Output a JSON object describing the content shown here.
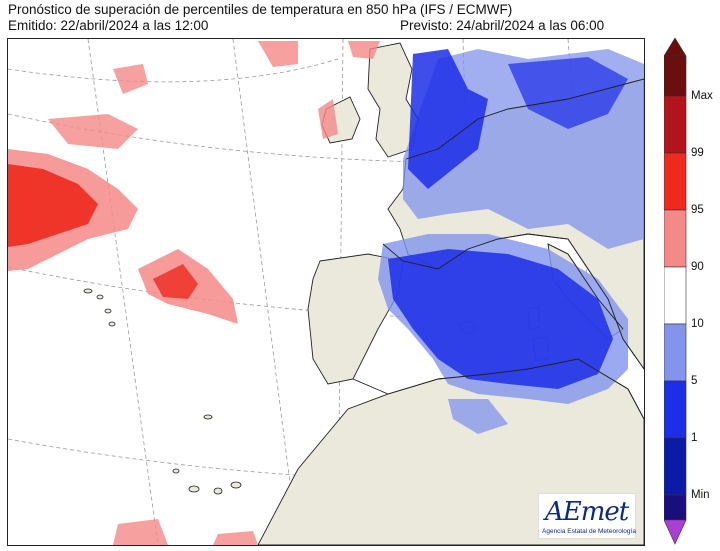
{
  "header": {
    "title": "Pronóstico de superación de percentiles de temperatura en 850 hPa (IFS / ECMWF)",
    "issued": "Emitido: 22/abril/2024 a las 12:00",
    "valid": "Previsto: 24/abril/2024 a las 06:00"
  },
  "logo": {
    "name": "AEmet",
    "subtitle": "Agencia Estatal de Meteorología"
  },
  "colorbar": {
    "labels": [
      "Max",
      "99",
      "95",
      "90",
      "10",
      "5",
      "1",
      "Min"
    ],
    "colors": {
      "max": "#6a0e0e",
      "p99": "#b3141b",
      "p95": "#ee2a1e",
      "p90": "#f48a88",
      "neutral": "#ffffff",
      "p10": "#8294ec",
      "p5": "#1d2ee8",
      "p1": "#0a1ba6",
      "min_low": "#1a0f7a",
      "min": "#a93fd6"
    }
  },
  "map": {
    "land_color": "#ebe8dc",
    "sea_color": "#ffffff"
  }
}
